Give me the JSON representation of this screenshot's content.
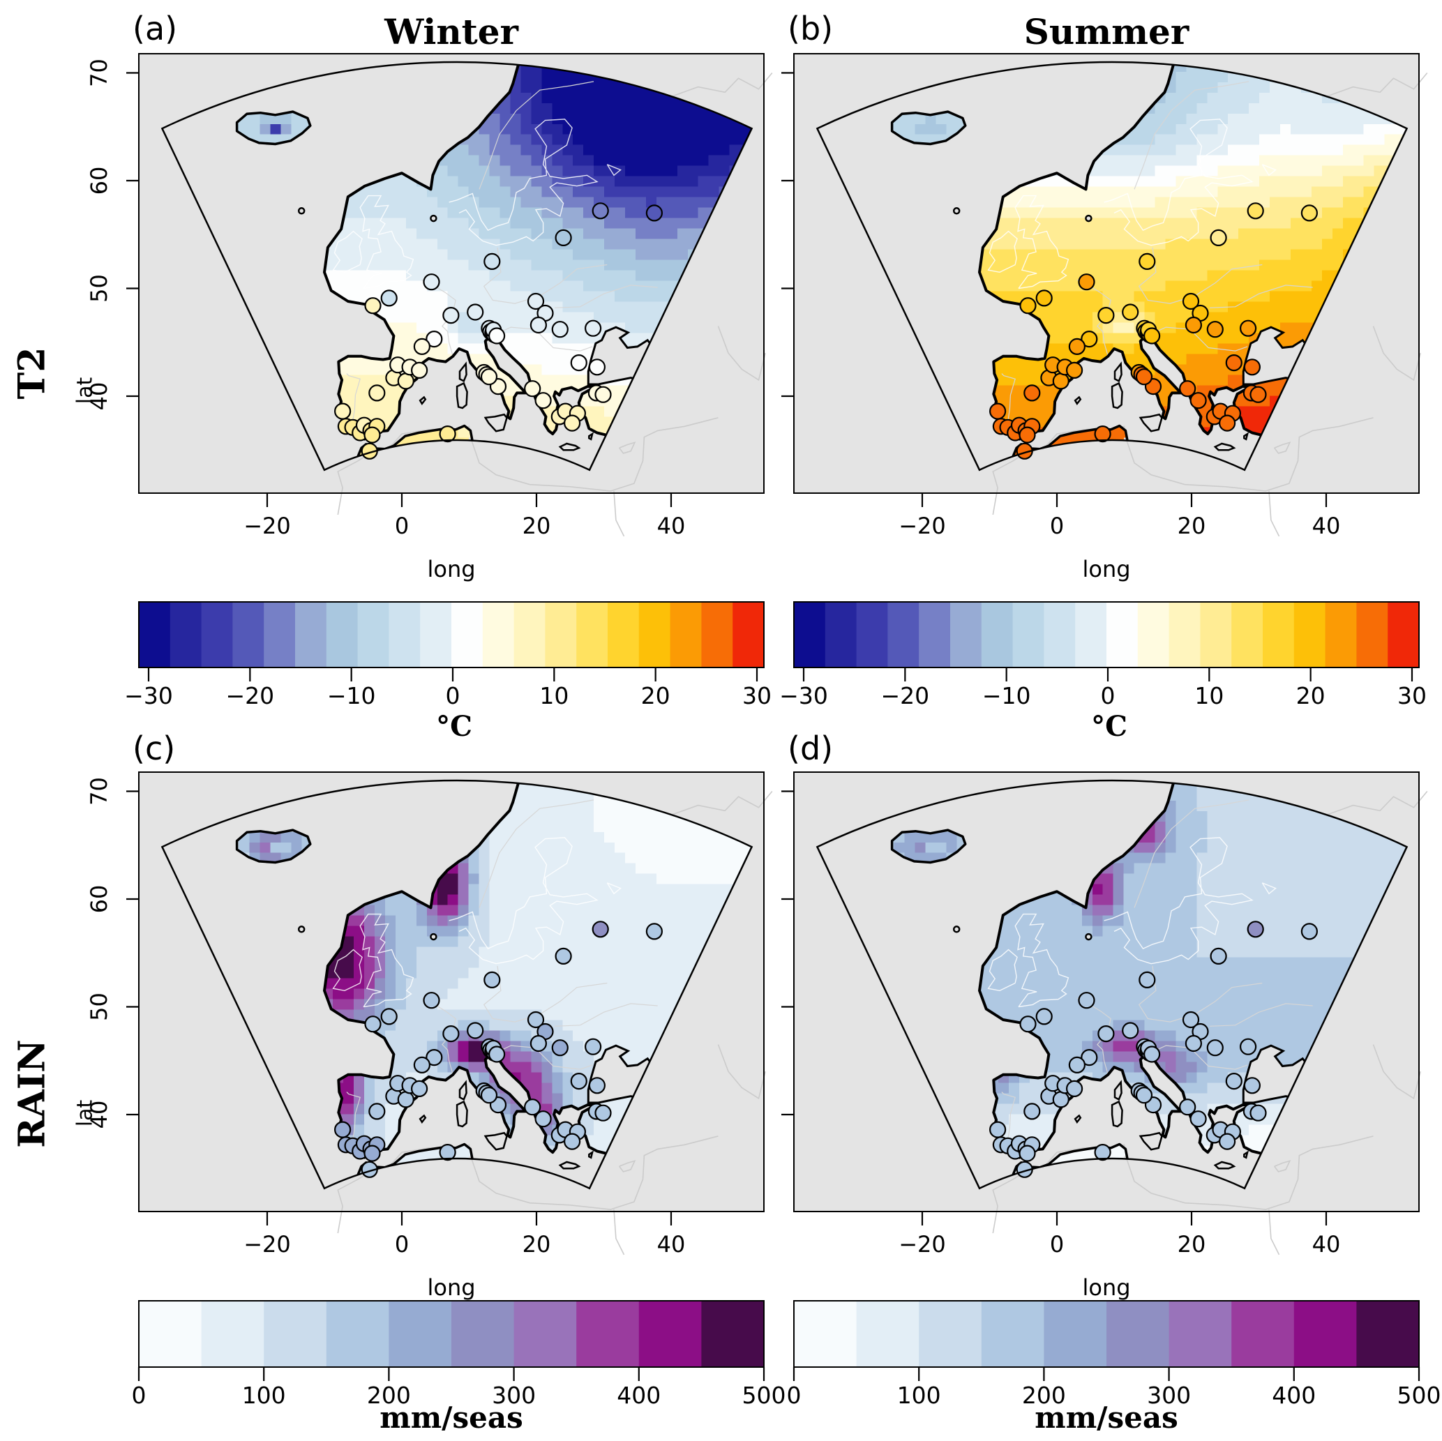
{
  "titles": {
    "winter": "Winter",
    "summer": "Summer"
  },
  "panel_letters": [
    "(a)",
    "(b)",
    "(c)",
    "(d)"
  ],
  "row_labels": {
    "t2": "T2",
    "rain": "RAIN"
  },
  "axes": {
    "x_label": "long",
    "y_label": "lat",
    "x_ticks": [
      -20,
      0,
      20,
      40
    ],
    "y_ticks": [
      40,
      50,
      60,
      70
    ]
  },
  "colorbars": {
    "t2": {
      "unit": "°C",
      "ticks": [
        -30,
        -20,
        -10,
        0,
        10,
        20,
        30
      ],
      "breaks_min": -30,
      "breaks_max": 30,
      "breaks_step": 3,
      "colors": [
        "#0D0D90",
        "#26269E",
        "#3C3CAC",
        "#5459B8",
        "#7680C6",
        "#97ABD4",
        "#A9C7DF",
        "#BCD7E8",
        "#CEE2EF",
        "#E2EEF5",
        "#FDFEFE",
        "#FFFBE0",
        "#FFF5BE",
        "#FFEC94",
        "#FFE260",
        "#FFD42E",
        "#FDC008",
        "#FB9B05",
        "#F76D06",
        "#F02808"
      ]
    },
    "rain": {
      "unit": "mm/seas",
      "ticks": [
        0,
        100,
        200,
        300,
        400,
        500
      ],
      "breaks_min": 0,
      "breaks_max": 500,
      "breaks_step": 50,
      "colors": [
        "#F7FBFD",
        "#E3EEF6",
        "#CBDCEC",
        "#AFC8E2",
        "#96ABD2",
        "#8F8FC2",
        "#9973BA",
        "#9A3C9E",
        "#8C0E86",
        "#470B4B"
      ]
    }
  },
  "chart_data": {
    "type": "heatmap",
    "description": "Four-panel climate-model map figure over a rotated-pole European domain: seasonal (Winter/Summer) mean 2-m temperature (T2, degC) and precipitation (RAIN, mm/season) fields shown as gridded color maps, with station observations overplotted as filled circles.",
    "panels": [
      {
        "id": "a",
        "variable": "T2",
        "season": "Winter",
        "palette": "t2",
        "field_model": {
          "base": 11,
          "terms": [
            {
              "type": "linlat",
              "c": -0.62,
              "lat0": 34
            },
            {
              "type": "ramp2",
              "a": -19.8,
              "lon0": 0,
              "lonN": 36,
              "lat0": 34,
              "latN": 36
            },
            {
              "type": "gauss",
              "a": -12,
              "clon": 34,
              "clat": 66,
              "slon": 260,
              "slat": 60
            },
            {
              "type": "gauss",
              "a": -6,
              "clon": 10,
              "clat": 46.5,
              "slon": 14,
              "slat": 1.8
            },
            {
              "type": "gauss",
              "a": -14,
              "clon": -18.7,
              "clat": 64.9,
              "slon": 3,
              "slat": 0.5
            }
          ]
        },
        "summary": "Cold (-25..-30C, dark navy) NE Scandinavia/Russia grading to mild (+5..+10C, pale yellow) Iberia and North Africa; Alps locally colder; Iceland cold interior."
      },
      {
        "id": "b",
        "variable": "T2",
        "season": "Summer",
        "palette": "t2",
        "field_model": {
          "base": 25,
          "terms": [
            {
              "type": "linlat",
              "c": -0.75,
              "lat0": 36
            },
            {
              "type": "ramp2",
              "a": 5.75,
              "lon0": 10,
              "lonN": 23,
              "lat0": 64,
              "latN": -28
            },
            {
              "type": "ramp2",
              "a": -11,
              "lon0": 34,
              "lonN": -20,
              "lat0": 56,
              "latN": 8
            },
            {
              "type": "gauss",
              "a": 8,
              "clon": 52,
              "clat": 57,
              "slon": 120,
              "slat": 120
            },
            {
              "type": "gauss",
              "a": -11,
              "clon": 10,
              "clat": 46.5,
              "slon": 14,
              "slat": 1.8
            },
            {
              "type": "gauss",
              "a": -7,
              "clon": 47,
              "clat": 66,
              "slon": 250,
              "slat": 40
            },
            {
              "type": "gauss",
              "a": -4,
              "clon": -18.7,
              "clat": 64.9,
              "slon": 3,
              "slat": 0.5
            }
          ]
        },
        "summary": "Hot (22..28C, orange) Iberia/Mediterranean/North Africa, gold central Europe, cool (pale blue) Scandinavian mountains and far NE; Alps locally cooler."
      },
      {
        "id": "c",
        "variable": "RAIN",
        "season": "Winter",
        "palette": "rain",
        "field_model": {
          "base": 95,
          "terms": [
            {
              "type": "gauss",
              "a": 430,
              "clon": 6.3,
              "clat": 61.5,
              "slon": 14,
              "slat": 18
            },
            {
              "type": "gauss",
              "a": 400,
              "clon": -9,
              "clat": 54.5,
              "slon": 55,
              "slat": 45
            },
            {
              "type": "gauss",
              "a": 380,
              "clon": 10.5,
              "clat": 46,
              "slon": 22,
              "slat": 2.8
            },
            {
              "type": "gauss",
              "a": 350,
              "clon": -8.5,
              "clat": 42,
              "slon": 9,
              "slat": 16
            },
            {
              "type": "gauss",
              "a": 300,
              "clon": 17.5,
              "clat": 43.5,
              "slon": 30,
              "slat": 9
            },
            {
              "type": "gauss",
              "a": 220,
              "clon": 21,
              "clat": 39.8,
              "slon": 15,
              "slat": 5
            },
            {
              "type": "gauss",
              "a": 330,
              "clon": -19,
              "clat": 64.9,
              "slon": 16,
              "slat": 1.8
            },
            {
              "type": "gauss",
              "a": -290,
              "clon": -18.3,
              "clat": 64.95,
              "slon": 3.5,
              "slat": 0.4
            },
            {
              "type": "ramp2",
              "a": -75,
              "lon0": 10,
              "lonN": 30,
              "lat0": 52,
              "latN": 15
            }
          ]
        },
        "summary": "Wet (>400 mm/seas, dark purple) Atlantic margins: W Iceland ring, Ireland/Scotland, Norway coast, NW Iberia, Alps, Dinaric coast; dry (<50) far NE."
      },
      {
        "id": "d",
        "variable": "RAIN",
        "season": "Summer",
        "palette": "rain",
        "field_model": {
          "base": 150,
          "terms": [
            {
              "type": "gauss",
              "a": 230,
              "clon": 10.5,
              "clat": 46.3,
              "slon": 26,
              "slat": 3.2
            },
            {
              "type": "gauss",
              "a": 270,
              "clon": 6.5,
              "clat": 61,
              "slon": 9,
              "slat": 10
            },
            {
              "type": "gauss",
              "a": 230,
              "clon": 13,
              "clat": 66.5,
              "slon": 18,
              "slat": 8
            },
            {
              "type": "gauss",
              "a": 120,
              "clon": -8.5,
              "clat": 43,
              "slon": 8,
              "slat": 6
            },
            {
              "type": "gauss",
              "a": 140,
              "clon": 17.5,
              "clat": 44.5,
              "slon": 20,
              "slat": 5
            },
            {
              "type": "gauss",
              "a": 170,
              "clon": -19,
              "clat": 64.9,
              "slon": 16,
              "slat": 1.8
            },
            {
              "type": "gauss",
              "a": -150,
              "clon": -18.3,
              "clat": 64.95,
              "slon": 3.5,
              "slat": 0.4
            },
            {
              "type": "ramp2",
              "a": -110,
              "lon0": -99,
              "lonN": 1,
              "lat0": 44,
              "latN": -8
            },
            {
              "type": "ramp2",
              "a": -60,
              "lon0": 20,
              "lonN": 25,
              "lat0": 55,
              "latN": 15
            },
            {
              "type": "ramp2",
              "a": -80,
              "lon0": 20,
              "lonN": 15,
              "lat0": 42,
              "latN": -6
            }
          ]
        },
        "summary": "Moderate (100..200) light-blue field over most of Europe, purple band along Scandes mountains, purple Alps and NW Iberia; dry southern Iberia/Anatolia."
      }
    ],
    "stations": {
      "note": "Observation sites plotted as circles on all four panels; fill value follows the panel field unless overridden.",
      "lonlat": [
        [
          -8.8,
          38.6
        ],
        [
          -8.3,
          37.2
        ],
        [
          -7.3,
          37.1
        ],
        [
          -6.2,
          36.6
        ],
        [
          -5.6,
          37.3
        ],
        [
          -4.6,
          36.8
        ],
        [
          -3.7,
          37.2
        ],
        [
          -4.4,
          36.4
        ],
        [
          -4.8,
          34.9
        ],
        [
          -3.7,
          40.3
        ],
        [
          -1.2,
          41.7
        ],
        [
          0.6,
          41.4
        ],
        [
          -0.6,
          42.9
        ],
        [
          1.2,
          42.7
        ],
        [
          2.6,
          42.4
        ],
        [
          4.8,
          45.3
        ],
        [
          3.0,
          44.6
        ],
        [
          -4.3,
          48.4
        ],
        [
          -1.9,
          49.1
        ],
        [
          4.4,
          50.6
        ],
        [
          7.3,
          47.5
        ],
        [
          13.4,
          52.5
        ],
        [
          10.9,
          47.8
        ],
        [
          13.0,
          46.3
        ],
        [
          13.2,
          46.0
        ],
        [
          13.5,
          45.85
        ],
        [
          13.75,
          45.7
        ],
        [
          13.6,
          46.15
        ],
        [
          14.1,
          45.6
        ],
        [
          6.8,
          36.5
        ],
        [
          14.3,
          40.9
        ],
        [
          12.2,
          42.2
        ],
        [
          12.6,
          42.0
        ],
        [
          12.95,
          41.8
        ],
        [
          19.4,
          40.7
        ],
        [
          21.0,
          39.6
        ],
        [
          23.4,
          38.1
        ],
        [
          24.3,
          38.6
        ],
        [
          26.1,
          38.4
        ],
        [
          25.3,
          37.5
        ],
        [
          28.9,
          40.3
        ],
        [
          29.9,
          40.15
        ],
        [
          19.9,
          48.8
        ],
        [
          21.3,
          47.7
        ],
        [
          20.3,
          46.6
        ],
        [
          23.5,
          46.2
        ],
        [
          28.4,
          46.3
        ],
        [
          26.3,
          43.1
        ],
        [
          29.0,
          42.7
        ],
        [
          24.0,
          54.7
        ],
        [
          29.5,
          57.2
        ],
        [
          37.5,
          57.0
        ]
      ],
      "overrides": {
        "t2_winter": {
          "17": 7,
          "18": -4
        },
        "t2_summer": {
          "19": 22,
          "49": 9
        },
        "rain_winter_default": 165,
        "rain_summer_default": 150,
        "rain_winter": {
          "0": 215,
          "1": 215,
          "2": 215,
          "3": 215,
          "4": 215,
          "5": 215,
          "6": 215,
          "7": 215,
          "43": 215,
          "45": 215,
          "50": 290
        },
        "rain_summer": {
          "50": 270
        }
      }
    },
    "layout_hints": {
      "projection": "rotated-pole model domain (fan-shaped outline) drawn over a plain lon/lat map",
      "grid_on": false,
      "legend_position": "horizontal colorbar below each map row"
    }
  }
}
